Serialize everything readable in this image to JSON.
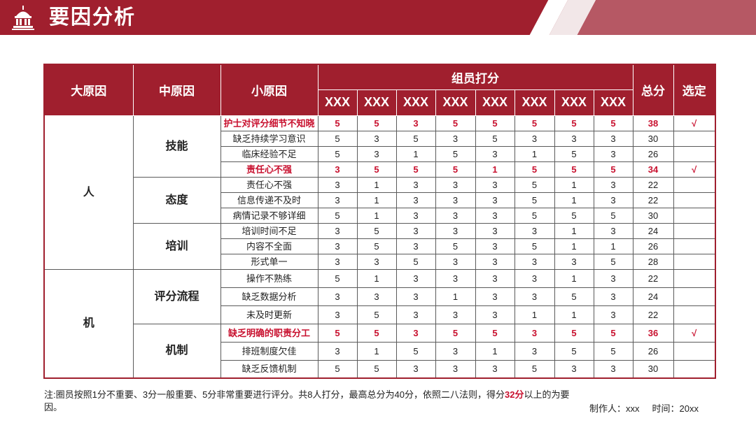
{
  "page": {
    "title": "要因分析"
  },
  "colors": {
    "brand": "#a01f2e",
    "highlight": "#c8102e"
  },
  "table": {
    "headers": {
      "big": "大原因",
      "mid": "中原因",
      "small": "小原因",
      "scores": "组员打分",
      "total": "总分",
      "select": "选定"
    },
    "members": [
      "XXX",
      "XXX",
      "XXX",
      "XXX",
      "XXX",
      "XXX",
      "XXX",
      "XXX"
    ],
    "rows": [
      {
        "big": "人",
        "mid": "技能",
        "small": "护士对评分细节不知晓",
        "scores": [
          "5",
          "5",
          "3",
          "5",
          "5",
          "5",
          "5",
          "5"
        ],
        "total": "38",
        "select": "√",
        "highlight": true
      },
      {
        "small": "缺乏持续学习意识",
        "scores": [
          "5",
          "3",
          "5",
          "3",
          "5",
          "3",
          "3",
          "3"
        ],
        "total": "30",
        "select": ""
      },
      {
        "small": "临床经验不足",
        "scores": [
          "5",
          "3",
          "1",
          "5",
          "3",
          "1",
          "5",
          "3"
        ],
        "total": "26",
        "select": ""
      },
      {
        "small": "责任心不强",
        "scores": [
          "3",
          "5",
          "5",
          "5",
          "1",
          "5",
          "5",
          "5"
        ],
        "total": "34",
        "select": "√",
        "highlight": true
      },
      {
        "mid": "态度",
        "small": "责任心不强",
        "scores": [
          "3",
          "1",
          "3",
          "3",
          "3",
          "5",
          "1",
          "3"
        ],
        "total": "22",
        "select": ""
      },
      {
        "small": "信息传递不及时",
        "scores": [
          "3",
          "1",
          "3",
          "3",
          "3",
          "5",
          "1",
          "3"
        ],
        "total": "22",
        "select": ""
      },
      {
        "small": "病情记录不够详细",
        "scores": [
          "5",
          "1",
          "3",
          "3",
          "3",
          "5",
          "5",
          "5"
        ],
        "total": "30",
        "select": ""
      },
      {
        "mid": "培训",
        "small": "培训时间不足",
        "scores": [
          "3",
          "5",
          "3",
          "3",
          "3",
          "3",
          "1",
          "3"
        ],
        "total": "24",
        "select": ""
      },
      {
        "small": "内容不全面",
        "scores": [
          "3",
          "5",
          "3",
          "5",
          "3",
          "5",
          "1",
          "1"
        ],
        "total": "26",
        "select": ""
      },
      {
        "small": "形式单一",
        "scores": [
          "3",
          "3",
          "5",
          "3",
          "3",
          "3",
          "3",
          "5"
        ],
        "total": "28",
        "select": ""
      },
      {
        "big": "机",
        "mid": "评分流程",
        "small": "操作不熟练",
        "scores": [
          "5",
          "1",
          "3",
          "3",
          "3",
          "3",
          "1",
          "3"
        ],
        "total": "22",
        "select": ""
      },
      {
        "small": "缺乏数据分析",
        "scores": [
          "3",
          "3",
          "3",
          "1",
          "3",
          "3",
          "5",
          "3"
        ],
        "total": "24",
        "select": ""
      },
      {
        "small": "未及时更新",
        "scores": [
          "3",
          "5",
          "3",
          "3",
          "3",
          "1",
          "1",
          "3"
        ],
        "total": "22",
        "select": ""
      },
      {
        "mid": "机制",
        "small": "缺乏明确的职责分工",
        "scores": [
          "5",
          "5",
          "3",
          "5",
          "5",
          "3",
          "5",
          "5"
        ],
        "total": "36",
        "select": "√",
        "highlight": true
      },
      {
        "small": "排班制度欠佳",
        "scores": [
          "3",
          "1",
          "5",
          "3",
          "1",
          "3",
          "5",
          "5"
        ],
        "total": "26",
        "select": ""
      },
      {
        "small": "缺乏反馈机制",
        "scores": [
          "5",
          "5",
          "3",
          "3",
          "3",
          "5",
          "3",
          "3"
        ],
        "total": "30",
        "select": ""
      }
    ]
  },
  "note": {
    "text_before": "注:圈员按照1分不重要、3分一般重要、5分非常重要进行评分。共8人打分，最高总分为40分，依照二八法则，得分",
    "emphasis": "32分",
    "text_after": "以上的为要因。"
  },
  "credit": {
    "maker": "制作人：xxx",
    "time": "时间：20xx"
  }
}
